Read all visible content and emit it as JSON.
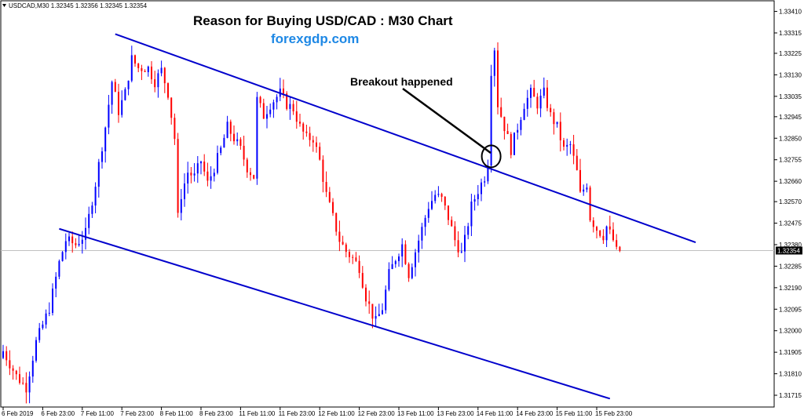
{
  "chart_data": {
    "type": "candlestick",
    "symbol_info": "USDCAD,M30  1.32345 1.32356 1.32345 1.32354",
    "title": "Reason for Buying USD/CAD : M30 Chart",
    "subtitle": "forexgdp.com",
    "annotation": "Breakout happened",
    "current_price": 1.32354,
    "current_price_label": "1.32354",
    "ylim": [
      1.3167,
      1.3345
    ],
    "y_ticks": [
      {
        "value": 1.3341,
        "label": "1.33410"
      },
      {
        "value": 1.33315,
        "label": "1.33315"
      },
      {
        "value": 1.33225,
        "label": "1.33225"
      },
      {
        "value": 1.3313,
        "label": "1.33130"
      },
      {
        "value": 1.33035,
        "label": "1.33035"
      },
      {
        "value": 1.32945,
        "label": "1.32945"
      },
      {
        "value": 1.3285,
        "label": "1.32850"
      },
      {
        "value": 1.32755,
        "label": "1.32755"
      },
      {
        "value": 1.3266,
        "label": "1.32660"
      },
      {
        "value": 1.3257,
        "label": "1.32570"
      },
      {
        "value": 1.32475,
        "label": "1.32475"
      },
      {
        "value": 1.3238,
        "label": "1.32380"
      },
      {
        "value": 1.32285,
        "label": "1.32285"
      },
      {
        "value": 1.3219,
        "label": "1.32190"
      },
      {
        "value": 1.32095,
        "label": "1.32095"
      },
      {
        "value": 1.32,
        "label": "1.32000"
      },
      {
        "value": 1.31905,
        "label": "1.31905"
      },
      {
        "value": 1.3181,
        "label": "1.31810"
      },
      {
        "value": 1.31715,
        "label": "1.31715"
      }
    ],
    "x_ticks": [
      {
        "index": 0,
        "label": "6 Feb 2019"
      },
      {
        "index": 12,
        "label": "6 Feb 23:00"
      },
      {
        "index": 24,
        "label": "7 Feb 11:00"
      },
      {
        "index": 36,
        "label": "7 Feb 23:00"
      },
      {
        "index": 48,
        "label": "8 Feb 11:00"
      },
      {
        "index": 60,
        "label": "8 Feb 23:00"
      },
      {
        "index": 72,
        "label": "11 Feb 11:00"
      },
      {
        "index": 84,
        "label": "11 Feb 23:00"
      },
      {
        "index": 96,
        "label": "12 Feb 11:00"
      },
      {
        "index": 108,
        "label": "12 Feb 23:00"
      },
      {
        "index": 120,
        "label": "13 Feb 11:00"
      },
      {
        "index": 132,
        "label": "13 Feb 23:00"
      },
      {
        "index": 144,
        "label": "14 Feb 11:00"
      },
      {
        "index": 156,
        "label": "14 Feb 23:00"
      },
      {
        "index": 168,
        "label": "15 Feb 11:00"
      },
      {
        "index": 180,
        "label": "15 Feb 23:00"
      }
    ],
    "close_path": [
      [
        0,
        1.3191
      ],
      [
        4,
        1.318
      ],
      [
        7,
        1.3175
      ],
      [
        10,
        1.3195
      ],
      [
        14,
        1.321
      ],
      [
        17,
        1.323
      ],
      [
        19,
        1.324
      ],
      [
        22,
        1.3238
      ],
      [
        25,
        1.3243
      ],
      [
        28,
        1.3265
      ],
      [
        31,
        1.329
      ],
      [
        33,
        1.331
      ],
      [
        35,
        1.3297
      ],
      [
        37,
        1.3305
      ],
      [
        39,
        1.332
      ],
      [
        41,
        1.3316
      ],
      [
        44,
        1.3316
      ],
      [
        46,
        1.331
      ],
      [
        48,
        1.3315
      ],
      [
        50,
        1.3305
      ],
      [
        52,
        1.3285
      ],
      [
        53,
        1.325
      ],
      [
        54,
        1.326
      ],
      [
        56,
        1.327
      ],
      [
        58,
        1.3268
      ],
      [
        60,
        1.3275
      ],
      [
        62,
        1.3265
      ],
      [
        64,
        1.3272
      ],
      [
        66,
        1.328
      ],
      [
        68,
        1.329
      ],
      [
        70,
        1.3285
      ],
      [
        72,
        1.328
      ],
      [
        74,
        1.3272
      ],
      [
        76,
        1.3268
      ],
      [
        77,
        1.3302
      ],
      [
        79,
        1.3295
      ],
      [
        81,
        1.33
      ],
      [
        84,
        1.3305
      ],
      [
        86,
        1.33
      ],
      [
        88,
        1.3298
      ],
      [
        90,
        1.329
      ],
      [
        92,
        1.3285
      ],
      [
        94,
        1.3285
      ],
      [
        96,
        1.3275
      ],
      [
        98,
        1.326
      ],
      [
        100,
        1.325
      ],
      [
        102,
        1.324
      ],
      [
        104,
        1.3235
      ],
      [
        106,
        1.3232
      ],
      [
        108,
        1.3228
      ],
      [
        110,
        1.3215
      ],
      [
        112,
        1.3207
      ],
      [
        113,
        1.3204
      ],
      [
        115,
        1.321
      ],
      [
        117,
        1.3225
      ],
      [
        119,
        1.3232
      ],
      [
        121,
        1.3238
      ],
      [
        123,
        1.3225
      ],
      [
        125,
        1.3235
      ],
      [
        127,
        1.3245
      ],
      [
        129,
        1.3255
      ],
      [
        131,
        1.326
      ],
      [
        133,
        1.3258
      ],
      [
        135,
        1.325
      ],
      [
        137,
        1.324
      ],
      [
        139,
        1.3234
      ],
      [
        140,
        1.324
      ],
      [
        142,
        1.3255
      ],
      [
        144,
        1.3262
      ],
      [
        146,
        1.3268
      ],
      [
        147,
        1.3275
      ],
      [
        148,
        1.3315
      ],
      [
        149,
        1.3325
      ],
      [
        150,
        1.33
      ],
      [
        152,
        1.329
      ],
      [
        154,
        1.328
      ],
      [
        156,
        1.329
      ],
      [
        158,
        1.33
      ],
      [
        160,
        1.3305
      ],
      [
        162,
        1.33
      ],
      [
        164,
        1.3305
      ],
      [
        166,
        1.3295
      ],
      [
        168,
        1.329
      ],
      [
        170,
        1.328
      ],
      [
        172,
        1.3282
      ],
      [
        174,
        1.327
      ],
      [
        175,
        1.326
      ],
      [
        177,
        1.3265
      ],
      [
        178,
        1.325
      ],
      [
        180,
        1.3245
      ],
      [
        182,
        1.3242
      ],
      [
        183,
        1.3246
      ],
      [
        185,
        1.324
      ],
      [
        186,
        1.3235
      ],
      [
        187,
        1.32354
      ]
    ],
    "trendlines": [
      {
        "name": "upper-channel-line",
        "from": [
          34,
          1.3331
        ],
        "to": [
          210,
          1.3239
        ]
      },
      {
        "name": "lower-channel-line",
        "from": [
          17,
          1.3245
        ],
        "to": [
          184,
          1.317
        ]
      }
    ],
    "breakout_point": {
      "index": 148,
      "price": 1.3277
    },
    "colors": {
      "background": "#ffffff",
      "bull_candle": "#0000ff",
      "bear_candle": "#ff0000",
      "trendline": "#0000cc",
      "price_line": "#c0c0c0",
      "price_tag_bg": "#000000",
      "subtitle": "#1e88e5"
    }
  }
}
